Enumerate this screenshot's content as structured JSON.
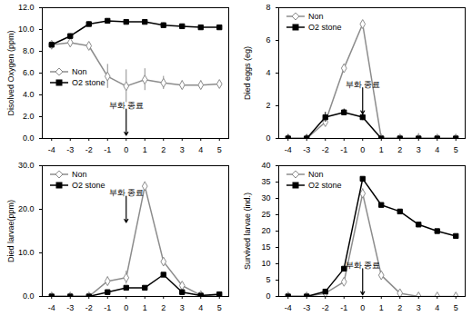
{
  "chart_data": [
    {
      "type": "line",
      "y_label": "Disolved Oxygen (ppm)",
      "x": [
        -4,
        -3,
        -2,
        -1,
        0,
        1,
        2,
        3,
        4,
        5
      ],
      "xlim": [
        -4.5,
        5.5
      ],
      "xticks": [
        -4,
        -3,
        -2,
        -1,
        0,
        1,
        2,
        3,
        4,
        5
      ],
      "ylim": [
        0,
        12
      ],
      "yticks": [
        {
          "value": 0,
          "label": "0.0"
        },
        {
          "value": 2,
          "label": "2.0"
        },
        {
          "value": 4,
          "label": "4.0"
        },
        {
          "value": 6,
          "label": "6.0"
        },
        {
          "value": 8,
          "label": "8.0"
        },
        {
          "value": 10,
          "label": "10.0"
        },
        {
          "value": 12,
          "label": "12.0"
        }
      ],
      "grid": false,
      "legend": "center left",
      "annotations": [
        {
          "text": "부화 종료",
          "x": 0,
          "y": 0.3
        }
      ],
      "series": [
        {
          "name": "Non",
          "color": "#8c8c8c",
          "marker": "diamond_open",
          "line_style": "solid",
          "values": [
            8.6,
            8.8,
            8.5,
            5.7,
            4.8,
            5.4,
            5.1,
            4.9,
            4.9,
            5.0
          ],
          "errors": [
            0,
            0,
            0,
            1.1,
            1.5,
            1.0,
            0.6,
            0.4,
            0.4,
            0.2
          ]
        },
        {
          "name": "O2 stone",
          "color": "#000000",
          "marker": "square",
          "line_style": "solid",
          "values": [
            8.6,
            9.4,
            10.5,
            10.8,
            10.7,
            10.7,
            10.4,
            10.3,
            10.2,
            10.2
          ],
          "errors": [
            0,
            0.2,
            0.2,
            0.2,
            0.2,
            0.2,
            0.2,
            0.2,
            0.2,
            0
          ]
        }
      ]
    },
    {
      "type": "line",
      "y_label": "Died eggs (eg)",
      "x": [
        -4,
        -3,
        -2,
        -1,
        0,
        1,
        2,
        3,
        4,
        5
      ],
      "xlim": [
        -4.5,
        5.5
      ],
      "xticks": [
        -4,
        -3,
        -2,
        -1,
        0,
        1,
        2,
        3,
        4,
        5
      ],
      "ylim": [
        0,
        8
      ],
      "yticks": [
        0,
        2,
        4,
        6,
        8
      ],
      "grid": false,
      "legend": "upper left",
      "annotations": [
        {
          "text": "부화 종료",
          "x": 0,
          "y": 1.5
        }
      ],
      "series": [
        {
          "name": "Non",
          "color": "#8c8c8c",
          "marker": "diamond_open",
          "line_style": "solid",
          "values": [
            0,
            0,
            1.0,
            4.3,
            7.0,
            0,
            0,
            0,
            0,
            0
          ],
          "errors": [
            0,
            0,
            0,
            0,
            0,
            0,
            0,
            0.3,
            0,
            0
          ]
        },
        {
          "name": "O2 stone",
          "color": "#000000",
          "marker": "square",
          "line_style": "solid",
          "values": [
            0,
            0,
            1.3,
            1.6,
            1.3,
            0,
            0,
            0,
            0,
            0
          ],
          "errors": [
            0.2,
            0.2,
            0.3,
            0.2,
            0.2,
            0,
            0,
            0,
            0,
            0
          ]
        }
      ]
    },
    {
      "type": "line",
      "y_label": "Died larvae(ppm)",
      "x": [
        -4,
        -3,
        -2,
        -1,
        0,
        1,
        2,
        3,
        4,
        5
      ],
      "xlim": [
        -4.5,
        5.5
      ],
      "xticks": [
        -4,
        -3,
        -2,
        -1,
        0,
        1,
        2,
        3,
        4,
        5
      ],
      "ylim": [
        0,
        30
      ],
      "yticks": [
        {
          "value": 0,
          "label": "0.0"
        },
        {
          "value": 10,
          "label": "10.0"
        },
        {
          "value": 20,
          "label": "20.0"
        },
        {
          "value": 30,
          "label": "30.0"
        }
      ],
      "grid": false,
      "legend": "upper left",
      "annotations": [
        {
          "text": "부화 종료",
          "x": 0,
          "y": 17
        }
      ],
      "series": [
        {
          "name": "Non",
          "color": "#8c8c8c",
          "marker": "diamond_open",
          "line_style": "solid",
          "values": [
            0,
            0,
            0,
            3.5,
            4.3,
            25.3,
            8.0,
            2.5,
            0.3,
            0
          ],
          "errors": [
            0,
            0,
            0,
            1.0,
            1.5,
            1.0,
            0.5,
            0.3,
            0,
            0
          ]
        },
        {
          "name": "O2 stone",
          "color": "#000000",
          "marker": "square",
          "line_style": "solid",
          "values": [
            0,
            0,
            0,
            1.0,
            2.0,
            2.0,
            5.0,
            1.0,
            0.2,
            0.5
          ],
          "errors": [
            0,
            0,
            0,
            0,
            0,
            0,
            0,
            0,
            0,
            0
          ]
        }
      ]
    },
    {
      "type": "line",
      "y_label": "Survived larvae (ind.)",
      "x": [
        -4,
        -3,
        -2,
        -1,
        0,
        1,
        2,
        3,
        4,
        5
      ],
      "xlim": [
        -4.5,
        5.5
      ],
      "xticks": [
        -4,
        -3,
        -2,
        -1,
        0,
        1,
        2,
        3,
        4,
        5
      ],
      "ylim": [
        0,
        40
      ],
      "yticks": [
        0,
        5,
        10,
        15,
        20,
        25,
        30,
        35,
        40
      ],
      "grid": false,
      "legend": "upper left",
      "annotations": [
        {
          "text": "부화 종료",
          "x": 0,
          "y": 0.5
        }
      ],
      "series": [
        {
          "name": "Non",
          "color": "#8c8c8c",
          "marker": "diamond_open",
          "line_style": "solid",
          "values": [
            0,
            0,
            1,
            4.5,
            31.5,
            6.5,
            1,
            0,
            0,
            0
          ],
          "errors": [
            0,
            0,
            0,
            1.0,
            1.5,
            0.5,
            0,
            0,
            0,
            0
          ]
        },
        {
          "name": "O2 stone",
          "color": "#000000",
          "marker": "square",
          "line_style": "solid",
          "values": [
            0,
            0,
            1.5,
            8.5,
            36,
            28,
            26,
            22,
            20,
            18.5
          ],
          "errors": [
            0,
            0,
            0,
            0,
            0,
            0,
            0,
            0,
            0,
            0
          ]
        }
      ]
    }
  ]
}
